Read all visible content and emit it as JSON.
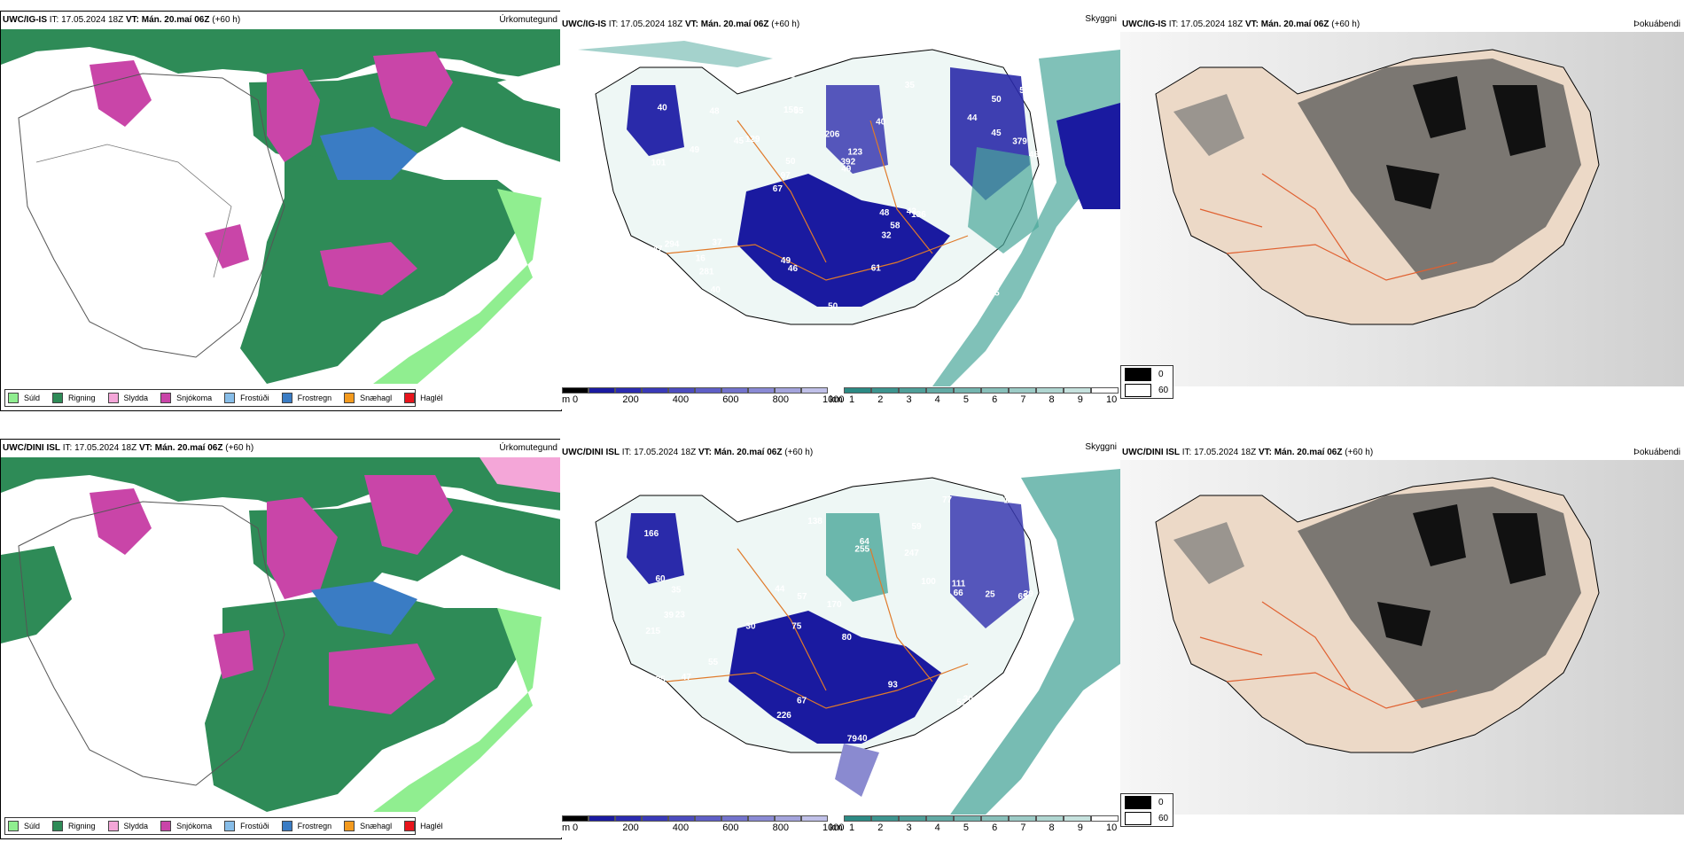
{
  "rows": [
    {
      "model": "UWC/IG-IS",
      "it_label": "IT: 17.05.2024 18Z",
      "vt_label": "VT: Mán. 20.maí 06Z",
      "lead": "(+60 h)"
    },
    {
      "model": "UWC/DINI ISL",
      "it_label": "IT: 17.05.2024 18Z",
      "vt_label": "VT: Mán. 20.maí 06Z",
      "lead": "(+60 h)"
    }
  ],
  "params": {
    "precip": "Úrkomutegund",
    "cloud": "Skyggni",
    "fog": "Þokuábendi"
  },
  "precip_legend": [
    {
      "label": "Súld",
      "color": "#90ee90"
    },
    {
      "label": "Rigning",
      "color": "#2e8b57"
    },
    {
      "label": "Slydda",
      "color": "#f4a6d8"
    },
    {
      "label": "Snjókoma",
      "color": "#c945a8"
    },
    {
      "label": "Frostúði",
      "color": "#87bde8"
    },
    {
      "label": "Frostregn",
      "color": "#3a7cc4"
    },
    {
      "label": "Snæhagl",
      "color": "#f39a1e"
    },
    {
      "label": "Haglél",
      "color": "#e8141c"
    }
  ],
  "cloud_scale": {
    "unit_m": "m",
    "ticks_m": [
      "0",
      "200",
      "400",
      "600",
      "800",
      "1000"
    ],
    "unit_km": "km",
    "ticks_km": [
      "1",
      "2",
      "3",
      "4",
      "5",
      "6",
      "7",
      "8",
      "9",
      "10"
    ]
  },
  "fog_legend": [
    {
      "label": "0",
      "color": "#000000"
    },
    {
      "label": "60",
      "color": "#ffffff"
    }
  ],
  "cloud_labels_top": [
    "195",
    "101",
    "50",
    "67",
    "40",
    "59",
    "159",
    "206",
    "294",
    "129",
    "152",
    "281",
    "55",
    "123",
    "136",
    "40",
    "41",
    "46",
    "48",
    "45",
    "97",
    "49",
    "50",
    "48",
    "35",
    "37",
    "31",
    "40",
    "43",
    "50",
    "45",
    "49",
    "32",
    "40",
    "379",
    "392",
    "52",
    "46",
    "49",
    "47",
    "44",
    "53",
    "58",
    "61",
    "16",
    "94",
    "85"
  ],
  "cloud_labels_bottom": [
    "54",
    "59",
    "69",
    "75",
    "80",
    "23",
    "166",
    "247",
    "215",
    "255",
    "170",
    "129",
    "61",
    "30",
    "79",
    "40",
    "67",
    "77",
    "100",
    "55",
    "35",
    "39",
    "29",
    "25",
    "45",
    "60",
    "57",
    "66",
    "30",
    "135",
    "52",
    "64",
    "47",
    "44",
    "93",
    "105",
    "111",
    "226",
    "183",
    "138"
  ]
}
